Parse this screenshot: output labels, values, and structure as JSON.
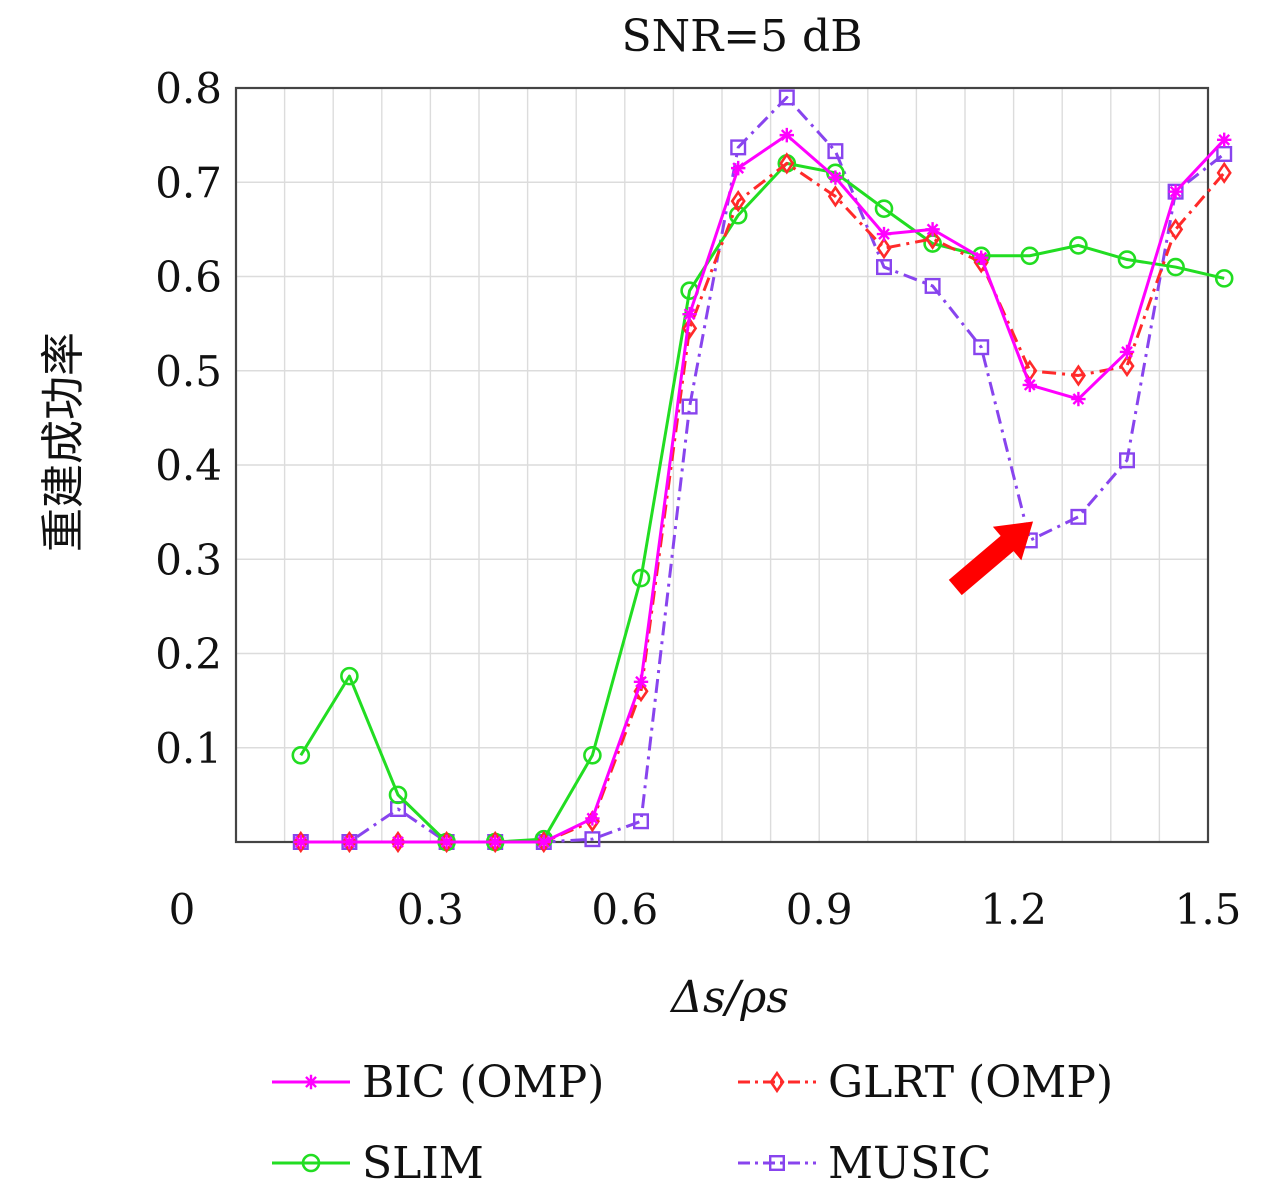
{
  "chart_data": {
    "type": "line",
    "title": "SNR=5 dB",
    "xlabel": "Δs/ρs",
    "ylabel": "重建成功率",
    "xlim": [
      0,
      1.5
    ],
    "ylim": [
      0,
      0.8
    ],
    "xticks": [
      0,
      0.3,
      0.6,
      0.9,
      1.2,
      1.5
    ],
    "xtick_labels": [
      "0",
      "0.3",
      "0.6",
      "0.9",
      "1.2",
      "1.5"
    ],
    "yticks": [
      0.1,
      0.2,
      0.3,
      0.4,
      0.5,
      0.6,
      0.7,
      0.8
    ],
    "ytick_labels": [
      "0.1",
      "0.2",
      "0.3",
      "0.4",
      "0.5",
      "0.6",
      "0.7",
      "0.8"
    ],
    "grid": true,
    "legend_position": "bottom",
    "x": [
      0.1,
      0.175,
      0.25,
      0.325,
      0.4,
      0.475,
      0.55,
      0.625,
      0.7,
      0.775,
      0.85,
      0.925,
      1.0,
      1.075,
      1.15,
      1.225,
      1.3,
      1.375,
      1.45,
      1.525
    ],
    "series": [
      {
        "name": "BIC (OMP)",
        "color": "#ff00ff",
        "marker": "asterisk",
        "linestyle": "solid",
        "values": [
          0.0,
          0.0,
          0.0,
          0.0,
          0.0,
          0.0,
          0.025,
          0.17,
          0.56,
          0.715,
          0.75,
          0.705,
          0.645,
          0.65,
          0.62,
          0.485,
          0.47,
          0.52,
          0.69,
          0.745
        ]
      },
      {
        "name": "GLRT (OMP)",
        "color": "#ff2a2a",
        "marker": "diamond",
        "linestyle": "dashdot",
        "values": [
          0.0,
          0.0,
          0.0,
          0.0,
          0.0,
          0.0,
          0.022,
          0.16,
          0.545,
          0.68,
          0.72,
          0.685,
          0.63,
          0.64,
          0.615,
          0.5,
          0.495,
          0.505,
          0.65,
          0.71
        ]
      },
      {
        "name": "SLIM",
        "color": "#22dd22",
        "marker": "circle",
        "linestyle": "solid",
        "values": [
          0.092,
          0.176,
          0.05,
          0.0,
          0.0,
          0.003,
          0.092,
          0.28,
          0.585,
          0.665,
          0.72,
          0.71,
          0.672,
          0.635,
          0.622,
          0.622,
          0.633,
          0.618,
          0.61,
          0.598
        ]
      },
      {
        "name": "MUSIC",
        "color": "#8844ee",
        "marker": "square",
        "linestyle": "dashdot",
        "values": [
          0.0,
          0.0,
          0.035,
          0.0,
          0.0,
          0.0,
          0.003,
          0.022,
          0.462,
          0.737,
          0.79,
          0.733,
          0.61,
          0.59,
          0.525,
          0.32,
          0.345,
          0.405,
          0.69,
          0.73
        ]
      }
    ],
    "annotations": [
      {
        "type": "arrow",
        "color": "#ff0000",
        "from": [
          1.11,
          0.27
        ],
        "to": [
          1.23,
          0.34
        ]
      }
    ]
  }
}
